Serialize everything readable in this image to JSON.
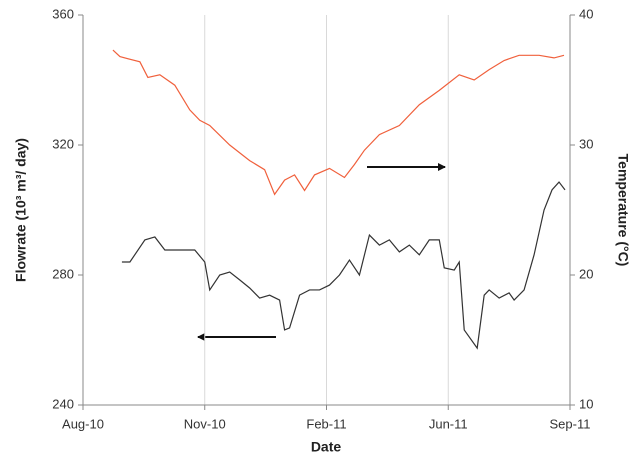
{
  "chart_data": {
    "type": "line",
    "x_label": "Date",
    "y_label": "Flowrate (10³ m³/ day)",
    "y2_label": "Temperature (°C)",
    "xlim": [
      0,
      488
    ],
    "xticks": [
      {
        "value": 0,
        "label": "Aug-10"
      },
      {
        "value": 122,
        "label": "Nov-10"
      },
      {
        "value": 244,
        "label": "Feb-11"
      },
      {
        "value": 366,
        "label": "Jun-11"
      },
      {
        "value": 488,
        "label": "Sep-11"
      }
    ],
    "ylim": [
      240,
      360
    ],
    "yticks": [
      240,
      280,
      320,
      360
    ],
    "y2lim": [
      10,
      40
    ],
    "y2ticks": [
      10,
      20,
      30,
      40
    ],
    "grid": true,
    "series": [
      {
        "name": "Temperature",
        "color": "#f0603c",
        "axis": "y2",
        "x": [
          30,
          37,
          57,
          65,
          77,
          92,
          107,
          117,
          127,
          147,
          167,
          182,
          192,
          202,
          212,
          222,
          232,
          247,
          262,
          272,
          282,
          297,
          317,
          337,
          357,
          377,
          392,
          407,
          422,
          437,
          457,
          472,
          482
        ],
        "values": [
          37.3,
          36.8,
          36.4,
          35.2,
          35.4,
          34.6,
          32.7,
          31.9,
          31.5,
          30.0,
          28.8,
          28.1,
          26.2,
          27.3,
          27.7,
          26.5,
          27.7,
          28.2,
          27.5,
          28.5,
          29.6,
          30.8,
          31.5,
          33.1,
          34.2,
          35.4,
          35.0,
          35.8,
          36.5,
          36.9,
          36.9,
          36.7,
          36.9
        ]
      },
      {
        "name": "Flowrate",
        "color": "#333333",
        "axis": "y",
        "x": [
          39,
          47,
          62,
          72,
          82,
          97,
          112,
          122,
          127,
          137,
          147,
          157,
          167,
          177,
          187,
          197,
          202,
          207,
          217,
          227,
          237,
          247,
          257,
          267,
          277,
          287,
          297,
          307,
          317,
          327,
          337,
          347,
          357,
          362,
          372,
          377,
          382,
          395,
          402,
          407,
          417,
          427,
          432,
          442,
          452,
          462,
          470,
          477,
          483
        ],
        "values": [
          284.0,
          284.0,
          290.8,
          291.7,
          287.7,
          287.7,
          287.7,
          284.0,
          275.4,
          280.0,
          280.9,
          278.5,
          276.0,
          272.9,
          273.8,
          272.3,
          263.1,
          263.7,
          273.8,
          275.4,
          275.4,
          276.9,
          280.0,
          284.6,
          280.0,
          292.3,
          289.2,
          290.8,
          287.1,
          289.2,
          286.2,
          290.8,
          290.8,
          282.2,
          281.5,
          284.0,
          263.1,
          257.5,
          273.8,
          275.4,
          272.9,
          274.5,
          272.3,
          275.4,
          286.2,
          300.0,
          306.2,
          308.6,
          306.2
        ]
      }
    ]
  }
}
